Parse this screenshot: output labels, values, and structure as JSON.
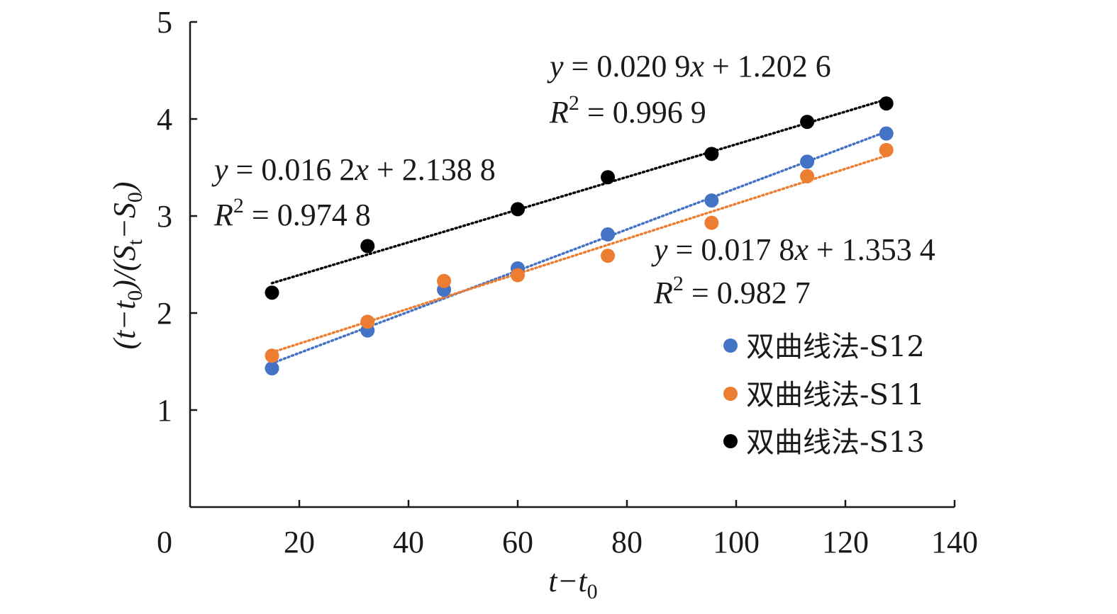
{
  "chart_data": {
    "type": "scatter",
    "title": "",
    "xlabel": {
      "main": "t−t",
      "sub": "0"
    },
    "ylabel": {
      "part1": "(t−t",
      "sub1": "0",
      "part2": ")/(S",
      "sub2": "t",
      "part3": "−S",
      "sub3": "0",
      "part4": ")"
    },
    "xlim": [
      0,
      140
    ],
    "ylim": [
      0,
      5
    ],
    "x_ticks": [
      "0",
      "20",
      "40",
      "60",
      "80",
      "100",
      "120",
      "140"
    ],
    "y_ticks": [
      "1",
      "2",
      "3",
      "4",
      "5"
    ],
    "grid": false,
    "legend_position": "right",
    "series": [
      {
        "name": "双曲线法-S12",
        "color": "#4472C4",
        "x": [
          15,
          32.5,
          46.5,
          60,
          76.5,
          95.5,
          113,
          127.5
        ],
        "y": [
          1.43,
          1.82,
          2.24,
          2.46,
          2.81,
          3.16,
          3.56,
          3.85
        ],
        "trendline": {
          "slope": 0.0209,
          "intercept": 1.2026
        },
        "equation": {
          "y": "y",
          "eq": " = 0.020 9",
          "x": "x",
          "rest": " + 1.202 6",
          "r": "R",
          "sup": "2",
          "r2": " = 0.996 9"
        }
      },
      {
        "name": "双曲线法-S11",
        "color": "#ED7D31",
        "x": [
          15,
          32.5,
          46.5,
          60,
          76.5,
          95.5,
          113,
          127.5
        ],
        "y": [
          1.56,
          1.91,
          2.33,
          2.39,
          2.59,
          2.93,
          3.41,
          3.68
        ],
        "trendline": {
          "slope": 0.0178,
          "intercept": 1.3534
        },
        "equation": {
          "y": "y",
          "eq": " = 0.017 8",
          "x": "x",
          "rest": " + 1.353 4",
          "r": "R",
          "sup": "2",
          "r2": " = 0.982 7"
        }
      },
      {
        "name": "双曲线法-S13",
        "color": "#000000",
        "x": [
          15,
          32.5,
          60,
          76.5,
          95.5,
          113,
          127.5
        ],
        "y": [
          2.21,
          2.69,
          3.07,
          3.4,
          3.64,
          3.97,
          4.16
        ],
        "trendline": {
          "slope": 0.0162,
          "intercept": 2.1388
        },
        "equation": {
          "y": "y",
          "eq": " = 0.016 2",
          "x": "x",
          "rest": " + 2.138 8",
          "r": "R",
          "sup": "2",
          "r2": " = 0.974 8"
        }
      }
    ]
  }
}
